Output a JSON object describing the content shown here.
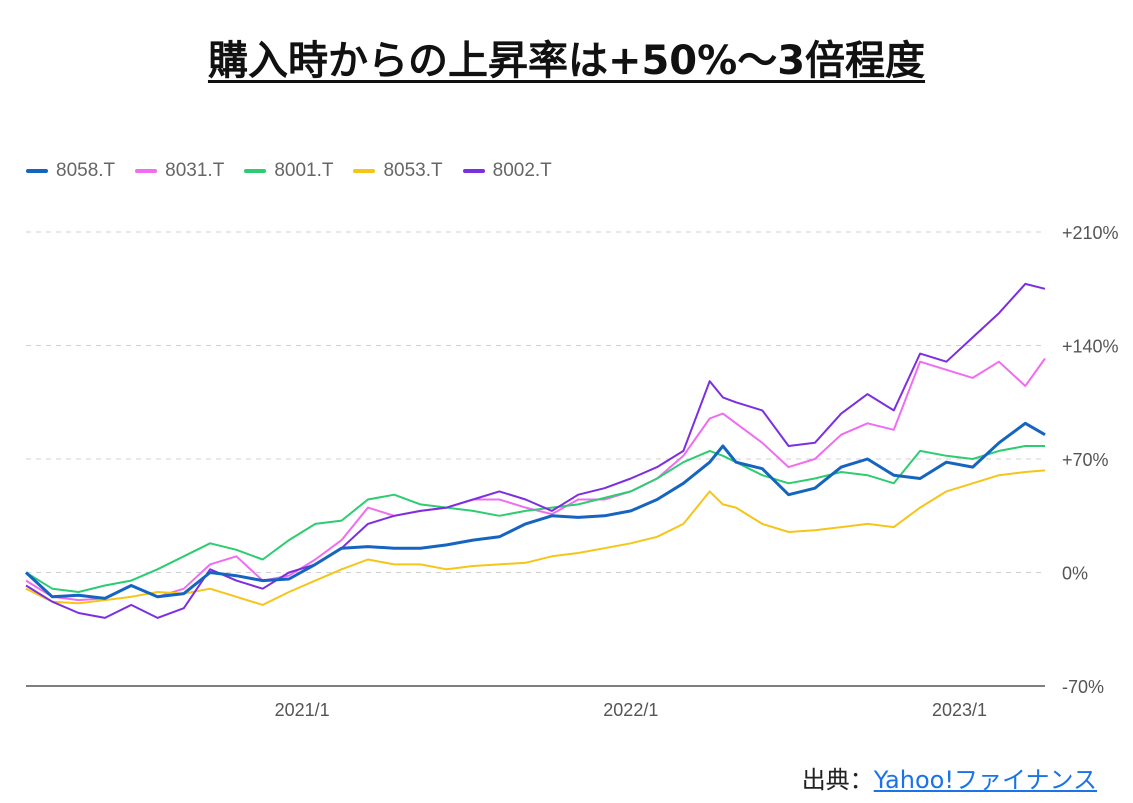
{
  "title": "購入時からの上昇率は+50%～3倍程度",
  "source": {
    "prefix": "出典：",
    "link_text": "Yahoo!ファイナンス"
  },
  "chart_data": {
    "type": "line",
    "x_tick_labels": [
      "2021/1",
      "2022/1",
      "2023/1"
    ],
    "y_tick_labels": [
      "+210%",
      "+140%",
      "+70%",
      "0%",
      "-70%"
    ],
    "ylim": [
      -70,
      210
    ],
    "y_ticks": [
      210,
      140,
      70,
      0,
      -70
    ],
    "x_range": [
      0,
      155
    ],
    "x_ticks": [
      42,
      92,
      142
    ],
    "grid": true,
    "legend_position": "top-left",
    "series": [
      {
        "name": "8058.T",
        "color": "#1565c0",
        "x": [
          0,
          4,
          8,
          12,
          16,
          20,
          24,
          28,
          32,
          36,
          40,
          44,
          48,
          52,
          56,
          60,
          64,
          68,
          72,
          76,
          80,
          84,
          88,
          92,
          96,
          100,
          104,
          106,
          108,
          112,
          116,
          120,
          124,
          128,
          132,
          136,
          140,
          144,
          148,
          152,
          155
        ],
        "y": [
          0,
          -15,
          -14,
          -16,
          -8,
          -15,
          -13,
          0,
          -2,
          -5,
          -4,
          5,
          15,
          16,
          15,
          15,
          17,
          20,
          22,
          30,
          35,
          34,
          35,
          38,
          45,
          55,
          68,
          78,
          68,
          64,
          48,
          52,
          65,
          70,
          60,
          58,
          68,
          65,
          80,
          92,
          85
        ]
      },
      {
        "name": "8031.T",
        "color": "#f06cf0",
        "x": [
          0,
          4,
          8,
          12,
          16,
          20,
          24,
          28,
          32,
          36,
          40,
          44,
          48,
          52,
          56,
          60,
          64,
          68,
          72,
          76,
          80,
          84,
          88,
          92,
          96,
          100,
          104,
          106,
          108,
          112,
          116,
          120,
          124,
          128,
          132,
          136,
          140,
          144,
          148,
          152,
          155
        ],
        "y": [
          -5,
          -15,
          -17,
          -16,
          -8,
          -15,
          -10,
          5,
          10,
          -5,
          -2,
          8,
          20,
          40,
          35,
          38,
          40,
          45,
          45,
          40,
          36,
          45,
          45,
          50,
          58,
          72,
          95,
          98,
          92,
          80,
          65,
          70,
          85,
          92,
          88,
          130,
          125,
          120,
          130,
          115,
          132
        ]
      },
      {
        "name": "8001.T",
        "color": "#2ecc71",
        "x": [
          0,
          4,
          8,
          12,
          16,
          20,
          24,
          28,
          32,
          36,
          40,
          44,
          48,
          52,
          56,
          60,
          64,
          68,
          72,
          76,
          80,
          84,
          88,
          92,
          96,
          100,
          104,
          106,
          108,
          112,
          116,
          120,
          124,
          128,
          132,
          136,
          140,
          144,
          148,
          152,
          155
        ],
        "y": [
          0,
          -10,
          -12,
          -8,
          -5,
          2,
          10,
          18,
          14,
          8,
          20,
          30,
          32,
          45,
          48,
          42,
          40,
          38,
          35,
          38,
          40,
          42,
          46,
          50,
          58,
          68,
          75,
          72,
          68,
          60,
          55,
          58,
          62,
          60,
          55,
          75,
          72,
          70,
          75,
          78,
          78
        ]
      },
      {
        "name": "8053.T",
        "color": "#f5c518",
        "x": [
          0,
          4,
          8,
          12,
          16,
          20,
          24,
          28,
          32,
          36,
          40,
          44,
          48,
          52,
          56,
          60,
          64,
          68,
          72,
          76,
          80,
          84,
          88,
          92,
          96,
          100,
          104,
          106,
          108,
          112,
          116,
          120,
          124,
          128,
          132,
          136,
          140,
          144,
          148,
          152,
          155
        ],
        "y": [
          -10,
          -18,
          -19,
          -17,
          -15,
          -12,
          -13,
          -10,
          -15,
          -20,
          -12,
          -5,
          2,
          8,
          5,
          5,
          2,
          4,
          5,
          6,
          10,
          12,
          15,
          18,
          22,
          30,
          50,
          42,
          40,
          30,
          25,
          26,
          28,
          30,
          28,
          40,
          50,
          55,
          60,
          62,
          63
        ]
      },
      {
        "name": "8002.T",
        "color": "#7b2fe0",
        "x": [
          0,
          4,
          8,
          12,
          16,
          20,
          24,
          28,
          32,
          36,
          40,
          44,
          48,
          52,
          56,
          60,
          64,
          68,
          72,
          76,
          80,
          84,
          88,
          92,
          96,
          100,
          104,
          106,
          108,
          112,
          116,
          120,
          124,
          128,
          132,
          136,
          140,
          144,
          148,
          152,
          155
        ],
        "y": [
          -8,
          -18,
          -25,
          -28,
          -20,
          -28,
          -22,
          2,
          -5,
          -10,
          0,
          5,
          15,
          30,
          35,
          38,
          40,
          45,
          50,
          45,
          38,
          48,
          52,
          58,
          65,
          75,
          118,
          108,
          105,
          100,
          78,
          80,
          98,
          110,
          100,
          135,
          130,
          145,
          160,
          178,
          175
        ]
      }
    ]
  }
}
